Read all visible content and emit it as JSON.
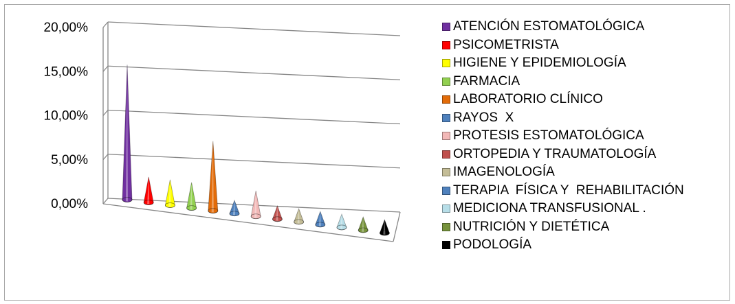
{
  "chart_data": {
    "type": "bar",
    "shape": "cone",
    "three_d": true,
    "categories": [
      "ATENCIÓN ESTOMATOLÓGICA",
      "PSICOMETRISTA",
      "HIGIENE Y EPIDEMIOLOGÍA",
      "FARMACIA",
      "LABORATORIO CLÍNICO",
      "RAYOS  X",
      "PROTESIS ESTOMATOLÓGICA",
      "ORTOPEDIA Y TRAUMATOLOGÍA",
      "IMAGENOLOGÍA",
      "TERAPIA  FÍSICA Y  REHABILITACIÓN",
      "MEDICIONA TRANSFUSIONAL .",
      "NUTRICIÓN Y DIETÉTICA",
      "PODOLOGÍA"
    ],
    "values": [
      15.3,
      2.9,
      2.9,
      2.9,
      7.9,
      1.5,
      2.9,
      1.5,
      1.5,
      1.5,
      1.5,
      1.5,
      1.5
    ],
    "colors": [
      "#7030a0",
      "#ff0000",
      "#ffff00",
      "#92d050",
      "#e36c09",
      "#4f81bd",
      "#f2b8b7",
      "#c0504d",
      "#c4bd97",
      "#4f81bd",
      "#b7dee8",
      "#77933c",
      "#000000"
    ],
    "y_ticks": [
      "0,00%",
      "5,00%",
      "10,00%",
      "15,00%",
      "20,00%"
    ],
    "ylim": [
      0,
      20
    ],
    "grid": true,
    "legend": "right",
    "title": "",
    "xlabel": "",
    "ylabel": ""
  }
}
